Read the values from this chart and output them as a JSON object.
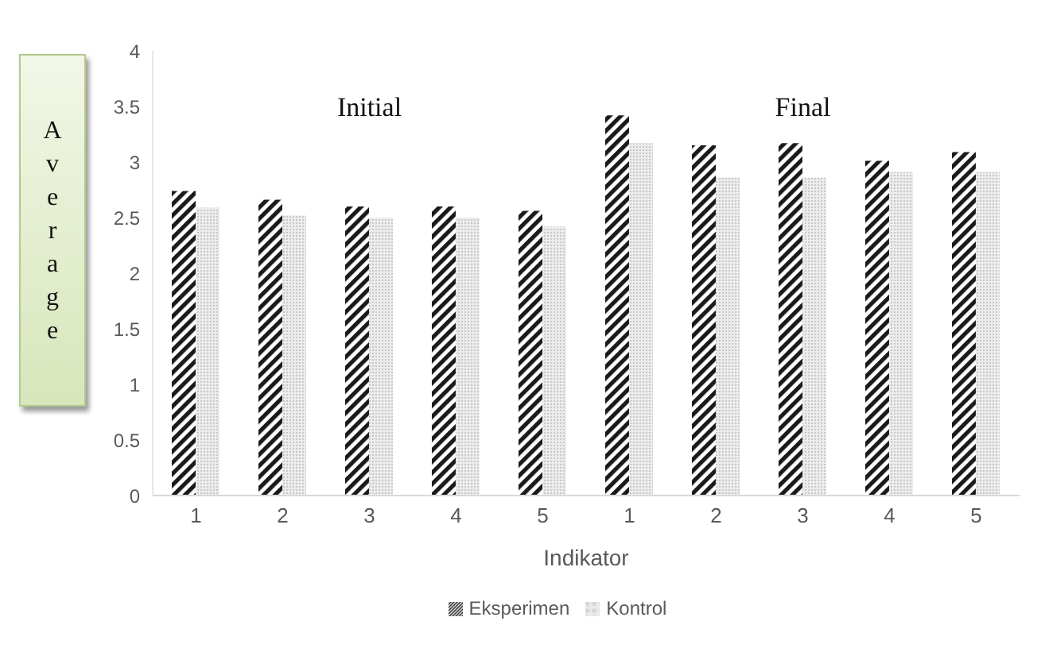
{
  "chart_data": {
    "type": "bar",
    "xlabel": "Indikator",
    "ylabel": "Average",
    "categories": [
      "1",
      "2",
      "3",
      "4",
      "5",
      "1",
      "2",
      "3",
      "4",
      "5"
    ],
    "series": [
      {
        "name": "Eksperimen",
        "color": "#1a1a1a",
        "values": [
          2.74,
          2.66,
          2.6,
          2.6,
          2.56,
          3.42,
          3.15,
          3.17,
          3.01,
          3.09
        ]
      },
      {
        "name": "Kontrol",
        "color": "#c8c8c8",
        "values": [
          2.59,
          2.52,
          2.5,
          2.5,
          2.42,
          3.17,
          2.86,
          2.86,
          2.91,
          2.91
        ]
      }
    ],
    "annotations": [
      "Initial",
      "Final"
    ],
    "ylim": [
      0,
      4
    ],
    "yticks": [
      0,
      0.5,
      1,
      1.5,
      2,
      2.5,
      3,
      3.5,
      4
    ],
    "grid": false,
    "legend": "bottom"
  }
}
